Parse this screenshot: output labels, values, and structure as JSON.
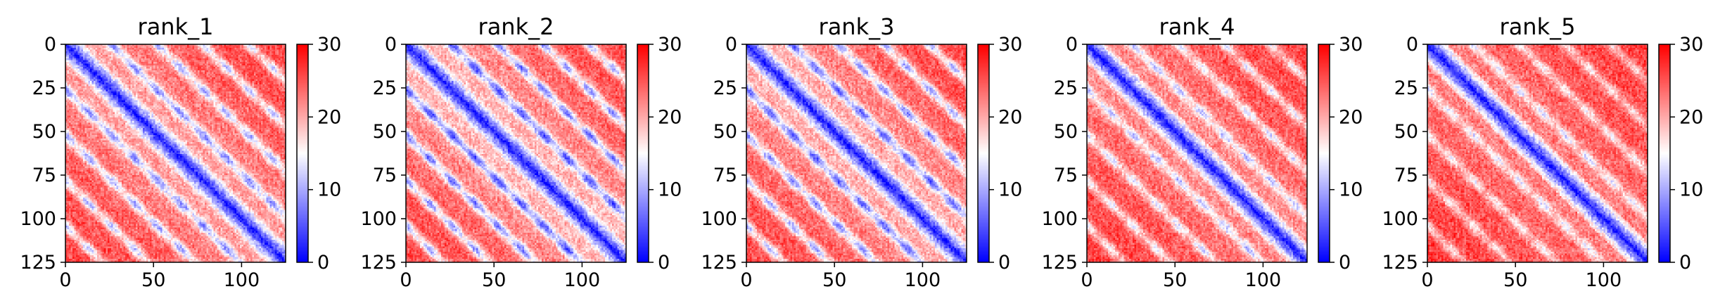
{
  "figure": {
    "description": "Five predicted aligned error (PAE) heatmaps, one per model rank, with blue-white-red colormap."
  },
  "chart_data": [
    {
      "type": "heatmap",
      "title": "rank_1",
      "xlim": [
        0,
        125
      ],
      "ylim": [
        125,
        0
      ],
      "xticks": [
        0,
        50,
        100
      ],
      "yticks": [
        0,
        25,
        50,
        75,
        100,
        125
      ],
      "colorbar": {
        "min": 0,
        "max": 30,
        "ticks": [
          0,
          10,
          20,
          30
        ],
        "colors": [
          "#0000ff",
          "#ffffff",
          "#ff0000"
        ]
      },
      "pattern": {
        "diagonal_width": 4.5,
        "block_size": 26,
        "contrast": 0.85
      }
    },
    {
      "type": "heatmap",
      "title": "rank_2",
      "xlim": [
        0,
        125
      ],
      "ylim": [
        125,
        0
      ],
      "xticks": [
        0,
        50,
        100
      ],
      "yticks": [
        0,
        25,
        50,
        75,
        100,
        125
      ],
      "colorbar": {
        "min": 0,
        "max": 30,
        "ticks": [
          0,
          10,
          20,
          30
        ],
        "colors": [
          "#0000ff",
          "#ffffff",
          "#ff0000"
        ]
      },
      "pattern": {
        "diagonal_width": 4.5,
        "block_size": 26,
        "contrast": 1.0
      }
    },
    {
      "type": "heatmap",
      "title": "rank_3",
      "xlim": [
        0,
        125
      ],
      "ylim": [
        125,
        0
      ],
      "xticks": [
        0,
        50,
        100
      ],
      "yticks": [
        0,
        25,
        50,
        75,
        100,
        125
      ],
      "colorbar": {
        "min": 0,
        "max": 30,
        "ticks": [
          0,
          10,
          20,
          30
        ],
        "colors": [
          "#0000ff",
          "#ffffff",
          "#ff0000"
        ]
      },
      "pattern": {
        "diagonal_width": 4.0,
        "block_size": 26,
        "contrast": 0.95
      }
    },
    {
      "type": "heatmap",
      "title": "rank_4",
      "xlim": [
        0,
        125
      ],
      "ylim": [
        125,
        0
      ],
      "xticks": [
        0,
        50,
        100
      ],
      "yticks": [
        0,
        25,
        50,
        75,
        100,
        125
      ],
      "colorbar": {
        "min": 0,
        "max": 30,
        "ticks": [
          0,
          10,
          20,
          30
        ],
        "colors": [
          "#0000ff",
          "#ffffff",
          "#ff0000"
        ]
      },
      "pattern": {
        "diagonal_width": 4.0,
        "block_size": 26,
        "contrast": 0.7
      }
    },
    {
      "type": "heatmap",
      "title": "rank_5",
      "xlim": [
        0,
        125
      ],
      "ylim": [
        125,
        0
      ],
      "xticks": [
        0,
        50,
        100
      ],
      "yticks": [
        0,
        25,
        50,
        75,
        100,
        125
      ],
      "colorbar": {
        "min": 0,
        "max": 30,
        "ticks": [
          0,
          10,
          20,
          30
        ],
        "colors": [
          "#0000ff",
          "#ffffff",
          "#ff0000"
        ]
      },
      "pattern": {
        "diagonal_width": 4.0,
        "block_size": 26,
        "contrast": 0.6
      }
    }
  ]
}
